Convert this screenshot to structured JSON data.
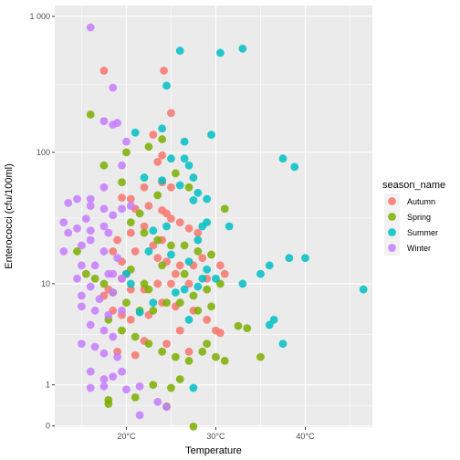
{
  "chart_data": {
    "type": "scatter",
    "xlabel": "Temperature",
    "ylabel": "Enterococci (cfu/100ml)",
    "x_ticks": [
      20,
      30,
      40
    ],
    "x_tick_labels": [
      "20°C",
      "30°C",
      "40°C"
    ],
    "x_range": [
      12.0,
      47.5
    ],
    "y_scale": "log10(y+1)",
    "y_ticks": [
      0,
      1,
      10,
      100,
      1000
    ],
    "y_tick_labels": [
      "0",
      "1",
      "10",
      "100",
      "1 000"
    ],
    "y_range": [
      -0.02,
      1000
    ],
    "grid": true,
    "legend": {
      "title": "season_name",
      "position": "right",
      "entries": [
        {
          "name": "Autumn",
          "color": "#F8766D"
        },
        {
          "name": "Spring",
          "color": "#7CAE00"
        },
        {
          "name": "Summer",
          "color": "#00BFC4"
        },
        {
          "name": "Winter",
          "color": "#C77CFF"
        }
      ]
    },
    "series": [
      {
        "name": "Autumn",
        "color": "#F8766D",
        "points": [
          [
            17.5,
            400
          ],
          [
            24.2,
            400
          ],
          [
            25.0,
            195
          ],
          [
            23.0,
            135
          ],
          [
            24.0,
            95
          ],
          [
            23.5,
            85
          ],
          [
            24.0,
            60
          ],
          [
            25.0,
            55
          ],
          [
            22.0,
            55
          ],
          [
            19.5,
            46
          ],
          [
            20.5,
            45
          ],
          [
            21.0,
            38
          ],
          [
            22.5,
            40
          ],
          [
            24.0,
            37
          ],
          [
            24.5,
            35
          ],
          [
            25.0,
            32
          ],
          [
            26.0,
            30
          ],
          [
            27.0,
            27
          ],
          [
            28.0,
            25
          ],
          [
            22.0,
            28
          ],
          [
            20.5,
            25
          ],
          [
            19.0,
            22
          ],
          [
            18.5,
            18
          ],
          [
            19.5,
            15
          ],
          [
            21.0,
            18
          ],
          [
            23.5,
            16
          ],
          [
            24.5,
            15
          ],
          [
            26.0,
            14
          ],
          [
            27.5,
            14
          ],
          [
            28.5,
            16
          ],
          [
            30.5,
            14
          ],
          [
            31.0,
            12
          ],
          [
            29.0,
            11
          ],
          [
            27.0,
            10
          ],
          [
            25.0,
            10
          ],
          [
            23.5,
            10
          ],
          [
            22.0,
            9
          ],
          [
            20.5,
            9
          ],
          [
            19.5,
            11
          ],
          [
            18.0,
            9
          ],
          [
            17.5,
            8
          ],
          [
            18.5,
            6
          ],
          [
            19.5,
            5.5
          ],
          [
            20.5,
            5
          ],
          [
            22.5,
            5.5
          ],
          [
            24.0,
            7
          ],
          [
            25.5,
            6.5
          ],
          [
            27.5,
            6
          ],
          [
            29.0,
            5
          ],
          [
            30.0,
            4
          ],
          [
            30.5,
            3.8
          ],
          [
            26.0,
            4
          ],
          [
            24.5,
            3
          ],
          [
            22.0,
            3.2
          ],
          [
            21.0,
            2.3
          ],
          [
            19.0,
            2.5
          ],
          [
            27.0,
            2.5
          ],
          [
            20.0,
            12
          ],
          [
            23.0,
            20
          ],
          [
            24.0,
            22
          ],
          [
            25.5,
            12
          ]
        ]
      },
      {
        "name": "Spring",
        "color": "#7CAE00",
        "points": [
          [
            16.0,
            190
          ],
          [
            17.5,
            80
          ],
          [
            19.5,
            60
          ],
          [
            20.0,
            100
          ],
          [
            22.5,
            110
          ],
          [
            24.0,
            125
          ],
          [
            25.5,
            70
          ],
          [
            27.0,
            55
          ],
          [
            23.5,
            48
          ],
          [
            21.5,
            35
          ],
          [
            20.5,
            30
          ],
          [
            22.0,
            25
          ],
          [
            23.5,
            22
          ],
          [
            25.0,
            20
          ],
          [
            26.5,
            20
          ],
          [
            28.0,
            18
          ],
          [
            29.5,
            17
          ],
          [
            31.0,
            38
          ],
          [
            30.5,
            10
          ],
          [
            29.0,
            9
          ],
          [
            27.5,
            8
          ],
          [
            26.0,
            7
          ],
          [
            24.5,
            7
          ],
          [
            23.0,
            6
          ],
          [
            21.5,
            6
          ],
          [
            20.0,
            7
          ],
          [
            18.5,
            8.5
          ],
          [
            17.5,
            10
          ],
          [
            16.5,
            11
          ],
          [
            15.5,
            12
          ],
          [
            14.5,
            18
          ],
          [
            18.0,
            5
          ],
          [
            19.5,
            4
          ],
          [
            21.0,
            3.5
          ],
          [
            22.5,
            3
          ],
          [
            24.0,
            2.5
          ],
          [
            25.5,
            2.2
          ],
          [
            27.0,
            2.0
          ],
          [
            28.5,
            2.5
          ],
          [
            30.0,
            2.2
          ],
          [
            32.5,
            4.4
          ],
          [
            33.5,
            4.2
          ],
          [
            35.0,
            2.2
          ],
          [
            31.0,
            2.0
          ],
          [
            29.0,
            3.0
          ],
          [
            26.0,
            1.2
          ],
          [
            25.0,
            0.9
          ],
          [
            23.0,
            1.0
          ],
          [
            21.0,
            0.62
          ],
          [
            18.0,
            0.55
          ],
          [
            18.0,
            0.45
          ],
          [
            24.5,
            0.39
          ],
          [
            27.5,
            -0.01
          ],
          [
            22.0,
            10
          ],
          [
            24.0,
            14
          ],
          [
            26.5,
            12
          ],
          [
            28.0,
            6
          ],
          [
            29.5,
            6.5
          ],
          [
            20.5,
            13
          ],
          [
            22.5,
            9
          ]
        ]
      },
      {
        "name": "Summer",
        "color": "#00BFC4",
        "points": [
          [
            24.5,
            310
          ],
          [
            26.0,
            560
          ],
          [
            30.5,
            540
          ],
          [
            33.0,
            580
          ],
          [
            21.0,
            140
          ],
          [
            24.0,
            150
          ],
          [
            26.5,
            120
          ],
          [
            29.5,
            135
          ],
          [
            25.0,
            90
          ],
          [
            26.5,
            90
          ],
          [
            27.0,
            80
          ],
          [
            27.5,
            65
          ],
          [
            24.0,
            62
          ],
          [
            26.0,
            57
          ],
          [
            28.0,
            50
          ],
          [
            27.5,
            44
          ],
          [
            29.0,
            30
          ],
          [
            31.5,
            28
          ],
          [
            28.5,
            28
          ],
          [
            24.5,
            28
          ],
          [
            23.0,
            26
          ],
          [
            22.5,
            18
          ],
          [
            25.0,
            17
          ],
          [
            27.0,
            15
          ],
          [
            29.0,
            13
          ],
          [
            28.5,
            11
          ],
          [
            26.5,
            9
          ],
          [
            25.5,
            8.5
          ],
          [
            23.0,
            7
          ],
          [
            21.5,
            5.8
          ],
          [
            20.5,
            10
          ],
          [
            33.0,
            10
          ],
          [
            35.0,
            12
          ],
          [
            36.0,
            14
          ],
          [
            37.5,
            90
          ],
          [
            38.8,
            78
          ],
          [
            38.2,
            16
          ],
          [
            40.0,
            16
          ],
          [
            36.5,
            5
          ],
          [
            36.0,
            4.5
          ],
          [
            37.5,
            3
          ],
          [
            46.5,
            9
          ],
          [
            27.5,
            0.9
          ],
          [
            27.0,
            5
          ],
          [
            28.0,
            9.5
          ],
          [
            30.0,
            11
          ],
          [
            22.0,
            65
          ],
          [
            20.0,
            12
          ],
          [
            29.0,
            45
          ],
          [
            28.0,
            22
          ]
        ]
      },
      {
        "name": "Winter",
        "color": "#C77CFF",
        "points": [
          [
            16.0,
            830
          ],
          [
            18.5,
            300
          ],
          [
            17.5,
            170
          ],
          [
            18.5,
            160
          ],
          [
            19.0,
            165
          ],
          [
            20.0,
            120
          ],
          [
            19.5,
            80
          ],
          [
            17.5,
            55
          ],
          [
            16.0,
            45
          ],
          [
            14.5,
            45
          ],
          [
            13.5,
            42
          ],
          [
            16.0,
            40
          ],
          [
            17.5,
            38
          ],
          [
            18.5,
            34
          ],
          [
            19.5,
            38
          ],
          [
            15.5,
            32
          ],
          [
            13.0,
            30
          ],
          [
            14.5,
            27
          ],
          [
            16.0,
            26
          ],
          [
            17.5,
            28
          ],
          [
            18.0,
            25
          ],
          [
            15.0,
            20
          ],
          [
            16.0,
            22
          ],
          [
            17.5,
            18
          ],
          [
            19.0,
            16
          ],
          [
            15.0,
            14
          ],
          [
            16.5,
            14
          ],
          [
            18.0,
            12
          ],
          [
            19.5,
            11
          ],
          [
            16.0,
            9.5
          ],
          [
            15.0,
            8
          ],
          [
            17.0,
            7.5
          ],
          [
            18.5,
            8.5
          ],
          [
            15.0,
            6.5
          ],
          [
            16.5,
            6
          ],
          [
            18.0,
            5.5
          ],
          [
            19.5,
            6
          ],
          [
            16.0,
            4.5
          ],
          [
            17.5,
            4
          ],
          [
            18.5,
            3.5
          ],
          [
            15.0,
            3
          ],
          [
            16.5,
            2.8
          ],
          [
            17.5,
            2.4
          ],
          [
            19.0,
            2.2
          ],
          [
            16.0,
            1.5
          ],
          [
            17.5,
            1.2
          ],
          [
            18.5,
            1.3
          ],
          [
            19.5,
            1.5
          ],
          [
            16.0,
            0.9
          ],
          [
            17.5,
            0.95
          ],
          [
            20.0,
            0.85
          ],
          [
            21.5,
            0.95
          ],
          [
            23.5,
            0.5
          ],
          [
            24.5,
            0.38
          ],
          [
            21.5,
            0.2
          ],
          [
            13.0,
            18
          ],
          [
            14.5,
            11
          ],
          [
            13.5,
            25
          ],
          [
            20.5,
            40
          ],
          [
            18.5,
            12
          ]
        ]
      }
    ]
  }
}
